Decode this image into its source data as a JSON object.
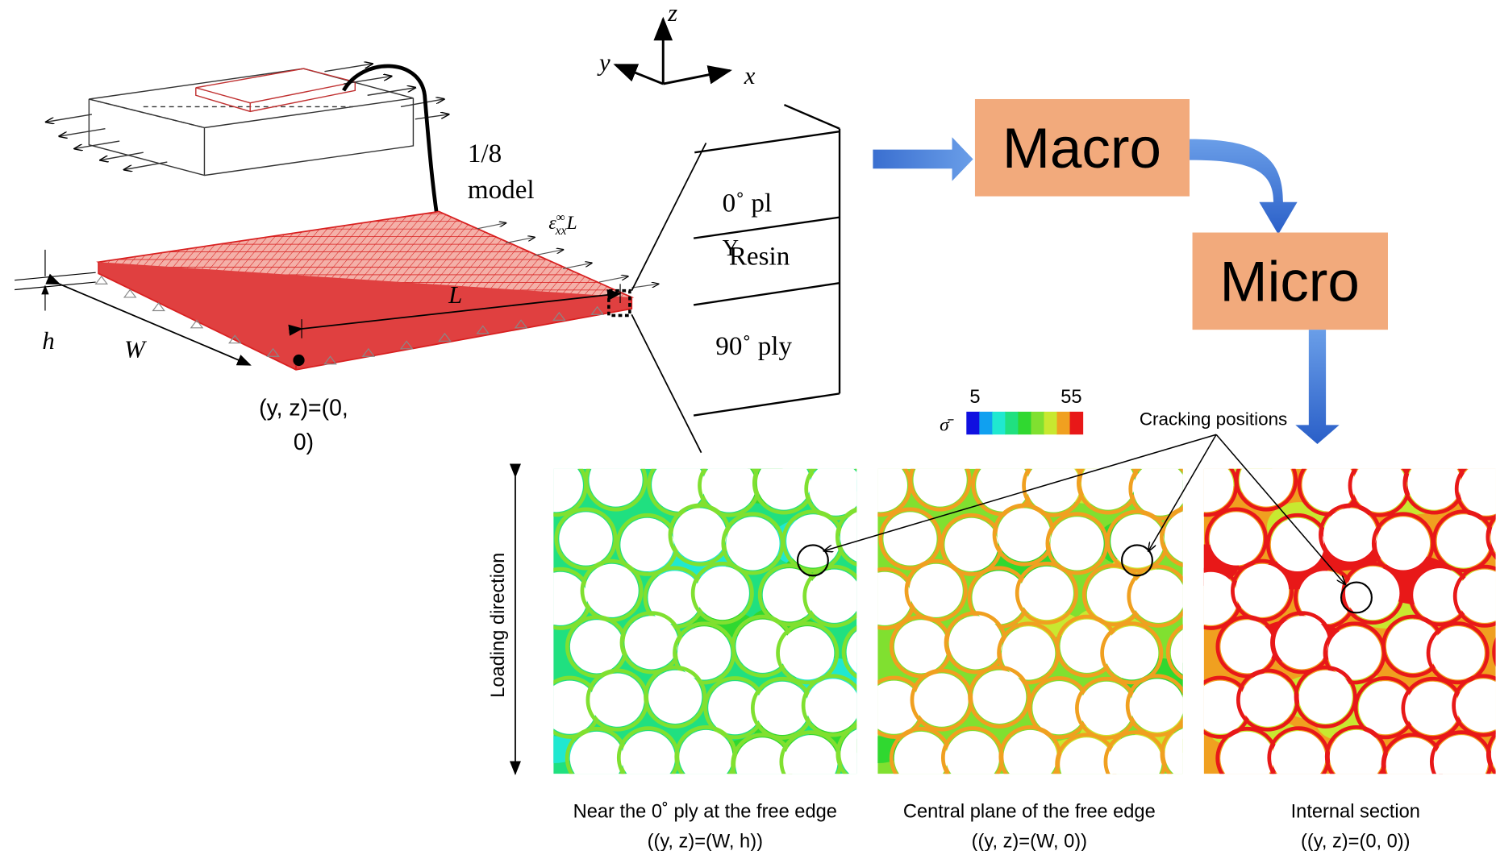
{
  "axes": {
    "x": "x",
    "y": "y",
    "z": "z"
  },
  "model": {
    "fraction": "1/8",
    "label": "model",
    "strain_rate": {
      "symbol": "ε̇",
      "sup": "∞",
      "sub": "xx",
      "factor": "L"
    },
    "length": "L",
    "width": "W",
    "thickness": "h",
    "origin": [
      "(y, z)=(0,",
      "0)"
    ]
  },
  "ply_stack": {
    "top": "0˚  pl",
    "mark": "Y",
    "resin": "Resin",
    "bottom": "90˚  ply"
  },
  "flow": {
    "macro": "Macro",
    "micro": "Micro"
  },
  "colorbar": {
    "symbol": "σ̄",
    "min": 5,
    "max": 55,
    "colors": [
      "#1010e0",
      "#10a0f0",
      "#20e8d0",
      "#20e080",
      "#30d830",
      "#80e030",
      "#c8e830",
      "#f0a020",
      "#e81818"
    ]
  },
  "annotation": "Cracking positions",
  "loading": "Loading direction",
  "panels": [
    {
      "caption": "Near the 0˚ ply at the free edge",
      "coords": "((y, z)=(W, h))"
    },
    {
      "caption": "Central plane of the free edge",
      "coords": "((y, z)=(W, 0))"
    },
    {
      "caption": "Internal section",
      "coords": "((y, z)=(0, 0))"
    }
  ]
}
